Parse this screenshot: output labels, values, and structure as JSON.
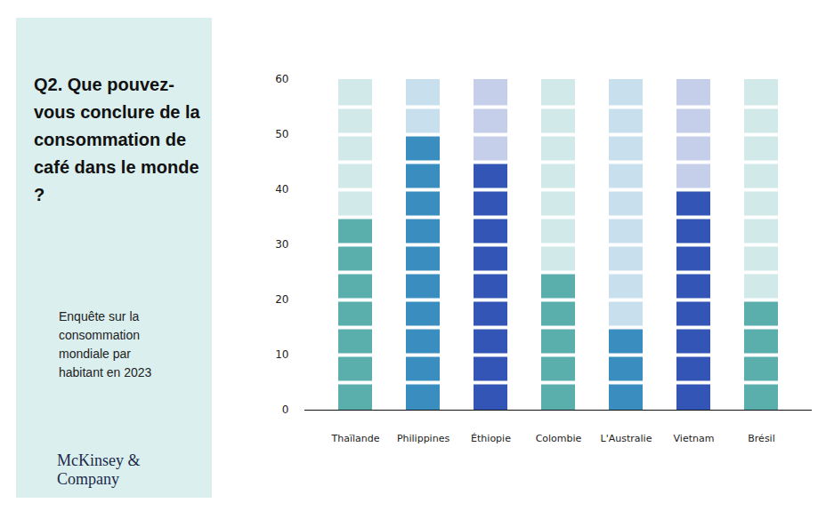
{
  "chart_data": {
    "type": "bar",
    "title": "Q2. Que pouvez-vous conclure de la consommation de café dans le monde ?",
    "subtitle": "Enquête sur la consommation mondiale par habitant en 2023",
    "annotations": [
      "McKinsey & Company"
    ],
    "categories": [
      "Thaïlande",
      "Philippines",
      "Éthiopie",
      "Colombie",
      "L'Australie",
      "Vietnam",
      "Brésil"
    ],
    "values": [
      35,
      50,
      45,
      25,
      15,
      40,
      20
    ],
    "colors": [
      "#5aafac",
      "#3a8dbf",
      "#3355b5",
      "#5aafac",
      "#3a8dbf",
      "#3355b5",
      "#5aafac"
    ],
    "ylim": [
      0,
      60
    ],
    "yticks": [
      0,
      10,
      20,
      30,
      40,
      50,
      60
    ],
    "grid": false
  }
}
